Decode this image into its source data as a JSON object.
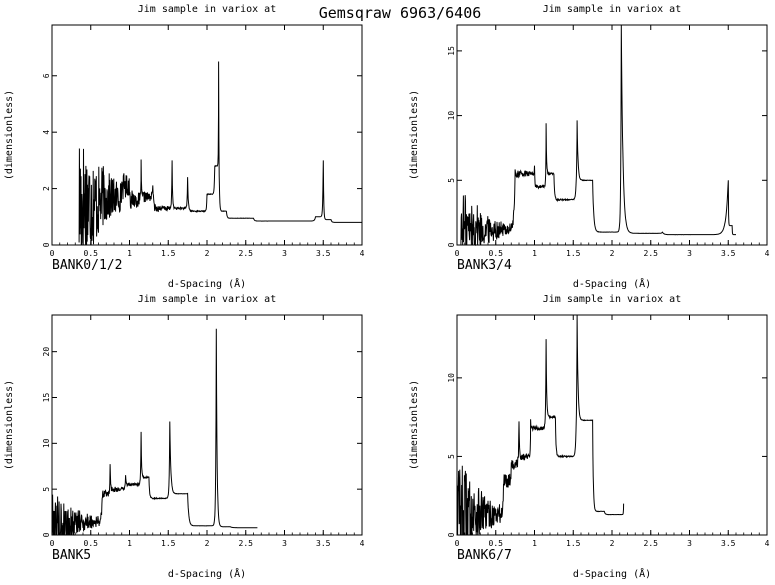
{
  "figure": {
    "main_title": "Gemsqraw 6963/6406"
  },
  "chart_data": [
    {
      "type": "line",
      "title": "Jim sample in variox at",
      "bank_label": "BANK0/1/2",
      "xlabel": "d-Spacing (Å)",
      "ylabel": "(dimensionless)",
      "xlim": [
        0,
        4
      ],
      "ylim": [
        0,
        7.8
      ],
      "xticks": [
        "0",
        "0.5",
        "1",
        "1.5",
        "2",
        "2.5",
        "3",
        "3.5",
        "4"
      ],
      "yticks": [
        "0",
        "2",
        "4",
        "6"
      ],
      "series": [
        {
          "x": [
            0.35,
            0.5,
            0.65,
            0.8,
            0.9,
            1.0,
            1.1,
            1.15,
            1.2,
            1.3,
            1.45,
            1.55,
            1.65,
            1.75,
            1.9,
            2.0,
            2.1,
            2.15,
            2.25,
            2.4,
            2.6,
            2.8,
            3.0,
            3.2,
            3.4,
            3.5,
            3.6,
            3.8,
            4.0
          ],
          "y": [
            1.6,
            1.5,
            1.8,
            1.7,
            2.1,
            2.1,
            1.6,
            3.2,
            1.7,
            2.2,
            1.3,
            3.0,
            1.3,
            2.4,
            1.2,
            1.8,
            2.8,
            6.5,
            1.2,
            0.95,
            0.95,
            0.85,
            0.85,
            0.85,
            1.0,
            3.0,
            0.9,
            0.8,
            0.8
          ]
        }
      ]
    },
    {
      "type": "line",
      "title": "Jim sample in variox at",
      "bank_label": "BANK3/4",
      "xlabel": "d-Spacing (Å)",
      "ylabel": "(dimensionless)",
      "xlim": [
        0,
        4
      ],
      "ylim": [
        0,
        17
      ],
      "xticks": [
        "0",
        "0.5",
        "1",
        "1.5",
        "2",
        "2.5",
        "3",
        "3.5",
        "4"
      ],
      "yticks": [
        "0",
        "5",
        "10",
        "15"
      ],
      "series": [
        {
          "x": [
            0.05,
            0.25,
            0.5,
            0.75,
            0.9,
            1.0,
            1.08,
            1.15,
            1.25,
            1.4,
            1.55,
            1.75,
            2.0,
            2.12,
            2.5,
            2.65,
            3.0,
            3.5,
            3.55,
            3.6
          ],
          "y": [
            1.2,
            1.8,
            1.2,
            5.5,
            5.5,
            6.0,
            4.5,
            9.5,
            5.5,
            3.5,
            9.6,
            5.0,
            1.0,
            17.0,
            0.9,
            1.0,
            0.8,
            5.0,
            1.5,
            0.8
          ]
        }
      ]
    },
    {
      "type": "line",
      "title": "Jim sample in variox at",
      "bank_label": "BANK5",
      "xlabel": "d-Spacing (Å)",
      "ylabel": "(dimensionless)",
      "xlim": [
        0,
        4
      ],
      "ylim": [
        0,
        24
      ],
      "xticks": [
        "0",
        "0.5",
        "1",
        "1.5",
        "2",
        "2.5",
        "3",
        "3.5",
        "4"
      ],
      "yticks": [
        "0",
        "5",
        "10",
        "15",
        "20"
      ],
      "series": [
        {
          "x": [
            0.0,
            0.3,
            0.5,
            0.65,
            0.75,
            0.85,
            0.95,
            1.05,
            1.15,
            1.25,
            1.4,
            1.52,
            1.75,
            2.0,
            2.12,
            2.3,
            2.65
          ],
          "y": [
            1.2,
            1.4,
            1.5,
            4.5,
            7.5,
            5.0,
            6.5,
            5.5,
            11.3,
            6.3,
            4.0,
            12.4,
            4.5,
            1.0,
            22.5,
            0.9,
            0.8
          ]
        }
      ]
    },
    {
      "type": "line",
      "title": "Jim sample in variox at",
      "bank_label": "BANK6/7",
      "xlabel": "d-Spacing (Å)",
      "ylabel": "(dimensionless)",
      "xlim": [
        0,
        4
      ],
      "ylim": [
        0,
        14
      ],
      "xticks": [
        "0",
        "0.5",
        "1",
        "1.5",
        "2",
        "2.5",
        "3",
        "3.5",
        "4"
      ],
      "yticks": [
        "0",
        "5",
        "10"
      ],
      "series": [
        {
          "x": [
            0.0,
            0.3,
            0.5,
            0.6,
            0.7,
            0.8,
            0.9,
            0.95,
            1.05,
            1.15,
            1.27,
            1.4,
            1.55,
            1.75,
            1.9,
            2.1,
            2.15
          ],
          "y": [
            1.3,
            1.5,
            1.3,
            3.5,
            4.5,
            7.5,
            5.0,
            7.2,
            6.8,
            12.5,
            7.5,
            5.0,
            14.0,
            7.3,
            1.5,
            1.3,
            2.0
          ]
        }
      ]
    }
  ]
}
